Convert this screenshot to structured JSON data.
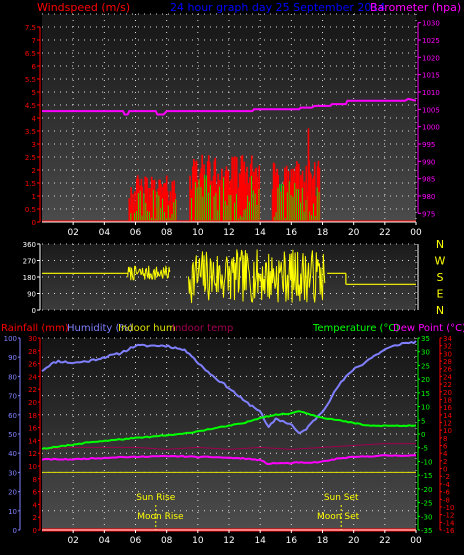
{
  "header": {
    "wind_axis_title": "Windspeed (m/s)",
    "date_title": "24 hour graph day  25 September 2014",
    "baro_axis_title": "Barometer (hpa)"
  },
  "x_ticks": [
    "02",
    "04",
    "06",
    "08",
    "10",
    "12",
    "14",
    "16",
    "18",
    "20",
    "22",
    "00"
  ],
  "colors": {
    "background": "#000000",
    "wind_axis": "#ff0000",
    "baro_axis": "#ff00ff",
    "date_title": "#0000ff",
    "wind_bars": "#ff0000",
    "gust": "#ff0000",
    "avg_wind": "#00ff00",
    "direction": "#ffff00",
    "compass": "#ffff00",
    "humidity": "#8080ff",
    "temperature": "#00ff00",
    "dew_point": "#ff00ff",
    "indoor_hum": "#e0e000",
    "indoor_temp": "#a00050",
    "rain_axis": "#ff0000",
    "temp_axis": "#00ff00",
    "dew_axis": "#ff0000",
    "sun_moon_labels": "#ffff00"
  },
  "compass_labels": [
    "N",
    "W",
    "S",
    "E",
    "N"
  ],
  "bottom_legend": {
    "rainfall": "Rainfall (mm)",
    "humidity": "Humidity (%)",
    "indoor_hum": "Indoor hum",
    "indoor_temp": "Indoor temp",
    "temperature": "Temperature (°C)",
    "dew_point": "Dew Point (°C)"
  },
  "annotations": {
    "sun_rise": "Sun Rise",
    "sun_set": "Sun Set",
    "moon_rise": "Moon Rise",
    "moon_set": "Moon Set"
  },
  "chart_data": [
    {
      "type": "bar",
      "name": "wind_panel",
      "xlim": [
        0,
        24
      ],
      "ylim": [
        0,
        8
      ],
      "yticks": [
        "0",
        "0.5",
        "1",
        "1.5",
        "2",
        "2.5",
        "3",
        "3.5",
        "4",
        "4.5",
        "5",
        "5.5",
        "6",
        "6.5",
        "7",
        "7.5"
      ],
      "baro_ylim": [
        972.5,
        1032.5
      ],
      "baro_yticks": [
        "975",
        "980",
        "985",
        "990",
        "995",
        "1000",
        "1005",
        "1010",
        "1015",
        "1020",
        "1025",
        "1030"
      ],
      "wind_windows": [
        [
          5.6,
          8.6,
          1.8
        ],
        [
          9.5,
          14.0,
          2.6
        ],
        [
          14.8,
          17.8,
          2.4
        ]
      ],
      "gust_peak": {
        "x": 17.1,
        "y": 3.6
      },
      "barometer": {
        "x": [
          0,
          5.2,
          5.3,
          5.5,
          5.6,
          7.3,
          7.4,
          7.6,
          7.8,
          8.0,
          10.3,
          10.4,
          13.5,
          13.6,
          16.5,
          16.6,
          17.3,
          17.5,
          18.5,
          18.6,
          19.5,
          19.6,
          23.3,
          23.5,
          24.0
        ],
        "y": [
          1004.5,
          1004.5,
          1003.5,
          1003.5,
          1004.5,
          1004.5,
          1003.5,
          1003.5,
          1003.5,
          1004.5,
          1004.5,
          1004.5,
          1004.5,
          1005.0,
          1005.0,
          1005.5,
          1005.5,
          1006.0,
          1006.0,
          1006.5,
          1006.5,
          1007.5,
          1007.5,
          1008.0,
          1007.5
        ]
      }
    },
    {
      "type": "scatter",
      "name": "wind_direction_panel",
      "xlim": [
        0,
        24
      ],
      "ylim": [
        0,
        360
      ],
      "yticks": [
        "0",
        "90",
        "180",
        "270",
        "360"
      ],
      "baseline_segments": [
        {
          "x": [
            0,
            5.5
          ],
          "y": 200
        },
        {
          "x": [
            18.3,
            19.5
          ],
          "y": 200
        },
        {
          "x": [
            19.5,
            24.0
          ],
          "y": 140
        }
      ],
      "variable_windows": [
        [
          5.5,
          8.2,
          160,
          240
        ],
        [
          9.4,
          18.2,
          40,
          330
        ]
      ]
    },
    {
      "type": "line",
      "name": "temp_humidity_panel",
      "xlim": [
        0,
        24
      ],
      "humidity_ylim": [
        0,
        100
      ],
      "humidity_yticks": [
        "0",
        "10",
        "20",
        "30",
        "40",
        "50",
        "60",
        "70",
        "80",
        "90",
        "100"
      ],
      "rain_ylim": [
        0,
        30
      ],
      "rain_yticks": [
        "0",
        "2",
        "4",
        "6",
        "8",
        "10",
        "12",
        "14",
        "16",
        "18",
        "20",
        "22",
        "24",
        "26",
        "28",
        "30"
      ],
      "temp_ylim": [
        -35,
        35
      ],
      "temp_yticks": [
        "-35",
        "-30",
        "-25",
        "-20",
        "-15",
        "-10",
        "-5",
        "0",
        "5",
        "10",
        "15",
        "20",
        "25",
        "30",
        "35"
      ],
      "dew_ylim": [
        -16,
        34
      ],
      "dew_yticks": [
        "-16",
        "-14",
        "-12",
        "-10",
        "-8",
        "-6",
        "-4",
        "-2",
        "0",
        "2",
        "4",
        "6",
        "8",
        "10",
        "12",
        "14",
        "16",
        "18",
        "20",
        "22",
        "24",
        "26",
        "28",
        "30",
        "32",
        "34"
      ],
      "humidity": {
        "x": [
          0,
          0.5,
          1,
          2,
          3,
          4,
          5,
          6,
          7,
          8,
          9,
          9.5,
          10,
          11,
          12,
          13,
          14,
          14.5,
          15,
          16,
          16.5,
          17,
          18,
          18.5,
          19,
          20,
          20.5,
          21,
          22,
          23,
          24
        ],
        "y": [
          83,
          86,
          88,
          87,
          88,
          90,
          92,
          96,
          96,
          96,
          94,
          92,
          87,
          80,
          74,
          67,
          62,
          53,
          58,
          55,
          50,
          53,
          62,
          68,
          75,
          84,
          86,
          89,
          94,
          97,
          98
        ]
      },
      "temperature": {
        "x": [
          0,
          1,
          2,
          3,
          4,
          5,
          6,
          7,
          8,
          9,
          10,
          11,
          12,
          13,
          14,
          15,
          16,
          16.5,
          17,
          18,
          19,
          20,
          21,
          22,
          23,
          24
        ],
        "y": [
          -5.5,
          -4.5,
          -4,
          -3,
          -2.5,
          -2,
          -1.5,
          -1,
          -0.5,
          0,
          1,
          2,
          3,
          4,
          6,
          7,
          7.5,
          8.5,
          7.5,
          6,
          5,
          4,
          3,
          3,
          3,
          3
        ]
      },
      "dew_point": {
        "x": [
          0,
          1,
          2,
          3,
          4,
          5,
          6,
          7,
          8,
          9,
          10,
          11,
          12,
          13,
          14,
          14.5,
          15,
          16,
          16.5,
          17,
          18,
          19,
          20,
          21,
          22,
          23,
          24
        ],
        "y": [
          2.4,
          2.4,
          2.4,
          2.6,
          2.8,
          3.0,
          3.0,
          3.2,
          3.2,
          3.2,
          3.0,
          3.0,
          2.8,
          2.6,
          2.2,
          1.2,
          1.4,
          1.4,
          1.6,
          1.4,
          1.8,
          2.6,
          3.0,
          3.2,
          3.4,
          3.4,
          3.4
        ]
      },
      "indoor_hum": {
        "x": [
          0,
          24
        ],
        "y": [
          30,
          30
        ]
      },
      "indoor_temp": {
        "x": [
          0,
          2,
          4,
          6,
          8,
          10,
          12,
          14,
          16,
          18,
          20,
          22,
          24
        ],
        "y": [
          42,
          43,
          43,
          43,
          42,
          43,
          42,
          43,
          42,
          43,
          44,
          45,
          45
        ]
      },
      "rainfall": {
        "x": [
          0,
          24
        ],
        "y": [
          0,
          0
        ]
      },
      "sun_rise": 7.3,
      "sun_set": 19.2,
      "moon_rise": 7.6,
      "moon_set": 19.0
    }
  ]
}
